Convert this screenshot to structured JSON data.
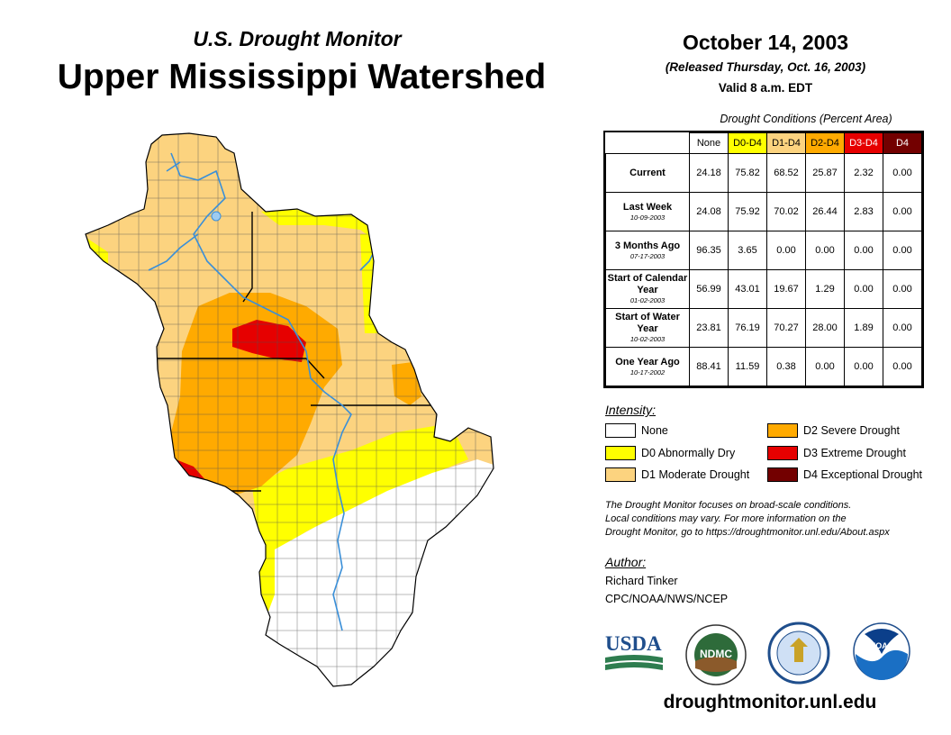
{
  "header": {
    "subtitle": "U.S. Drought Monitor",
    "title": "Upper Mississippi Watershed",
    "date": "October 14, 2003",
    "released": "(Released Thursday, Oct. 16, 2003)",
    "valid": "Valid 8 a.m. EDT"
  },
  "table": {
    "title": "Drought Conditions (Percent Area)",
    "columns": [
      {
        "label": "None",
        "color": "#ffffff",
        "text": "#000000"
      },
      {
        "label": "D0-D4",
        "color": "#ffff00",
        "text": "#000000"
      },
      {
        "label": "D1-D4",
        "color": "#fcd37f",
        "text": "#000000"
      },
      {
        "label": "D2-D4",
        "color": "#ffaa00",
        "text": "#000000"
      },
      {
        "label": "D3-D4",
        "color": "#e60000",
        "text": "#ffffff"
      },
      {
        "label": "D4",
        "color": "#730000",
        "text": "#ffffff"
      }
    ],
    "rows": [
      {
        "label": "Current",
        "date": "",
        "values": [
          "24.18",
          "75.82",
          "68.52",
          "25.87",
          "2.32",
          "0.00"
        ]
      },
      {
        "label": "Last Week",
        "date": "10-09-2003",
        "values": [
          "24.08",
          "75.92",
          "70.02",
          "26.44",
          "2.83",
          "0.00"
        ]
      },
      {
        "label": "3 Months Ago",
        "date": "07-17-2003",
        "values": [
          "96.35",
          "3.65",
          "0.00",
          "0.00",
          "0.00",
          "0.00"
        ]
      },
      {
        "label": "Start of Calendar Year",
        "date": "01-02-2003",
        "values": [
          "56.99",
          "43.01",
          "19.67",
          "1.29",
          "0.00",
          "0.00"
        ]
      },
      {
        "label": "Start of Water Year",
        "date": "10-02-2003",
        "values": [
          "23.81",
          "76.19",
          "70.27",
          "28.00",
          "1.89",
          "0.00"
        ]
      },
      {
        "label": "One Year Ago",
        "date": "10-17-2002",
        "values": [
          "88.41",
          "11.59",
          "0.38",
          "0.00",
          "0.00",
          "0.00"
        ]
      }
    ]
  },
  "legend": {
    "title": "Intensity:",
    "items": [
      {
        "label": "None",
        "color": "#ffffff"
      },
      {
        "label": "D0 Abnormally Dry",
        "color": "#ffff00"
      },
      {
        "label": "D1 Moderate Drought",
        "color": "#fcd37f"
      },
      {
        "label": "D2 Severe Drought",
        "color": "#ffaa00"
      },
      {
        "label": "D3 Extreme Drought",
        "color": "#e60000"
      },
      {
        "label": "D4 Exceptional Drought",
        "color": "#730000"
      }
    ]
  },
  "note": {
    "line1": "The Drought Monitor focuses on broad-scale conditions.",
    "line2": "Local conditions may vary. For more information on the",
    "line3": "Drought Monitor, go to https://droughtmonitor.unl.edu/About.aspx"
  },
  "author": {
    "heading": "Author:",
    "name": "Richard Tinker",
    "org": "CPC/NOAA/NWS/NCEP"
  },
  "logos": {
    "usda": "USDA",
    "ndmc": "NDMC",
    "noaa": "NOAA"
  },
  "website": "droughtmonitor.unl.edu"
}
